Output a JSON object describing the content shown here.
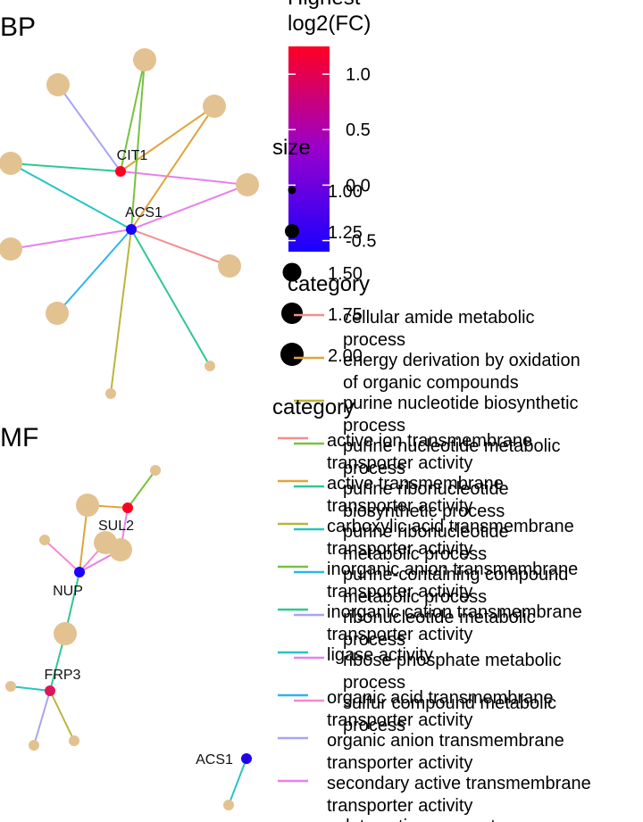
{
  "chart_data": [
    {
      "type": "network",
      "panel_label": "BP",
      "gene_nodes": [
        {
          "label": "CIT1",
          "log2fc": 1.2
        },
        {
          "label": "ACS1",
          "log2fc": -0.5
        }
      ],
      "edges": [
        {
          "gene": "CIT1",
          "term": "energy derivation by oxidation of organic compounds"
        },
        {
          "gene": "CIT1",
          "term": "purine nucleotide metabolic process"
        },
        {
          "gene": "CIT1",
          "term": "ribonucleotide metabolic process"
        },
        {
          "gene": "CIT1",
          "term": "purine ribonucleotide biosynthetic process"
        },
        {
          "gene": "CIT1",
          "term": "ribose phosphate metabolic process"
        },
        {
          "gene": "ACS1",
          "term": "purine nucleotide biosynthetic process"
        },
        {
          "gene": "ACS1",
          "term": "purine ribonucleotide metabolic process"
        },
        {
          "gene": "ACS1",
          "term": "purine-containing compound metabolic process"
        },
        {
          "gene": "ACS1",
          "term": "cellular amide metabolic process"
        },
        {
          "gene": "ACS1",
          "term": "ribose phosphate metabolic process"
        },
        {
          "gene": "ACS1",
          "term": "sulfur compound metabolic process"
        },
        {
          "gene": "ACS1",
          "term": "purine ribonucleotide biosynthetic process"
        },
        {
          "gene": "ACS1",
          "term": "purine nucleotide metabolic process"
        }
      ]
    },
    {
      "type": "network",
      "panel_label": "MF",
      "gene_nodes": [
        {
          "label": "SUL2",
          "log2fc": 1.2
        },
        {
          "label": "NUP",
          "log2fc": -0.5
        },
        {
          "label": "FRP3",
          "log2fc": 0.7
        },
        {
          "label": "ACS1",
          "log2fc": -0.4
        }
      ],
      "edges": [
        {
          "gene": "SUL2",
          "term": "inorganic anion transmembrane transporter activity"
        },
        {
          "gene": "SUL2",
          "term": "active transmembrane transporter activity"
        },
        {
          "gene": "SUL2",
          "term": "secondary active transmembrane transporter activity"
        },
        {
          "gene": "NUP",
          "term": "active transmembrane transporter activity"
        },
        {
          "gene": "NUP",
          "term": "organic acid transmembrane transporter activity"
        },
        {
          "gene": "NUP",
          "term": "secondary active transmembrane transporter activity"
        },
        {
          "gene": "NUP",
          "term": "inorganic cation transmembrane transporter activity"
        },
        {
          "gene": "FRP3",
          "term": "inorganic cation transmembrane transporter activity"
        },
        {
          "gene": "FRP3",
          "term": "ligase activity"
        },
        {
          "gene": "FRP3",
          "term": "organic anion transmembrane transporter activity"
        },
        {
          "gene": "FRP3",
          "term": "carboxylic acid transmembrane transporter activity"
        },
        {
          "gene": "ACS1",
          "term": "ligase activity"
        }
      ]
    }
  ],
  "colorbar": {
    "title_line1": "Highest",
    "title_line2": "log2(FC)",
    "ticks": [
      "1.0",
      "0.5",
      "0.0",
      "-0.5"
    ],
    "tick_values": [
      1.0,
      0.5,
      0.0,
      -0.5
    ],
    "range": [
      -0.6,
      1.25
    ],
    "colors": {
      "low": "#1a00ff",
      "mid": "#9900cc",
      "high": "#ff0022"
    }
  },
  "size_legend": {
    "title": "size",
    "entries": [
      "1.00",
      "1.25",
      "1.50",
      "1.75",
      "2.00"
    ]
  },
  "category_legend_bp": {
    "title": "category",
    "entries": [
      {
        "line1": "cellular amide metabolic",
        "line2": "process",
        "color": "#f28e8e"
      },
      {
        "line1": "energy derivation by oxidation",
        "line2": "of organic compounds",
        "color": "#e0a43c"
      },
      {
        "line1": "purine nucleotide biosynthetic",
        "line2": "process",
        "color": "#bcb43a"
      },
      {
        "line1": "purine nucleotide metabolic",
        "line2": "process",
        "color": "#77c241"
      },
      {
        "line1": "purine ribonucleotide",
        "line2": "biosynthetic process",
        "color": "#2fc88f"
      },
      {
        "line1": "purine ribonucleotide",
        "line2": "metabolic process",
        "color": "#27c4c4"
      },
      {
        "line1": "purine-containing compound",
        "line2": "metabolic process",
        "color": "#2fb4ee"
      },
      {
        "line1": "ribonucleotide metabolic",
        "line2": "process",
        "color": "#a9a4f1"
      },
      {
        "line1": "ribose phosphate metabolic",
        "line2": "process",
        "color": "#e681ea"
      },
      {
        "line1": "sulfur compound metabolic",
        "line2": "process",
        "color": "#f58ad0"
      }
    ]
  },
  "category_legend_mf": {
    "title": "category",
    "entries": [
      {
        "line1": "active ion transmembrane",
        "line2": "transporter activity",
        "color": "#f28e8e"
      },
      {
        "line1": "active transmembrane",
        "line2": "transporter activity",
        "color": "#e0a43c"
      },
      {
        "line1": "carboxylic acid transmembrane",
        "line2": "transporter activity",
        "color": "#bcb43a"
      },
      {
        "line1": "inorganic anion transmembrane",
        "line2": "transporter activity",
        "color": "#77c241"
      },
      {
        "line1": "inorganic cation transmembrane",
        "line2": "transporter activity",
        "color": "#2fc88f"
      },
      {
        "line1": "ligase activity",
        "line2": "",
        "color": "#27c4c4"
      },
      {
        "line1": "organic acid transmembrane",
        "line2": "transporter activity",
        "color": "#2fb4ee"
      },
      {
        "line1": "organic anion transmembrane",
        "line2": "transporter activity",
        "color": "#a9a4f1"
      },
      {
        "line1": "secondary active transmembrane",
        "line2": "transporter activity",
        "color": "#e681ea"
      },
      {
        "line1": "solute:cation symporter",
        "line2": "",
        "color": "#f58ad0"
      }
    ]
  },
  "colors": {
    "term_node": "#e3c291",
    "label": "#111111",
    "edge_label": "#000000"
  }
}
